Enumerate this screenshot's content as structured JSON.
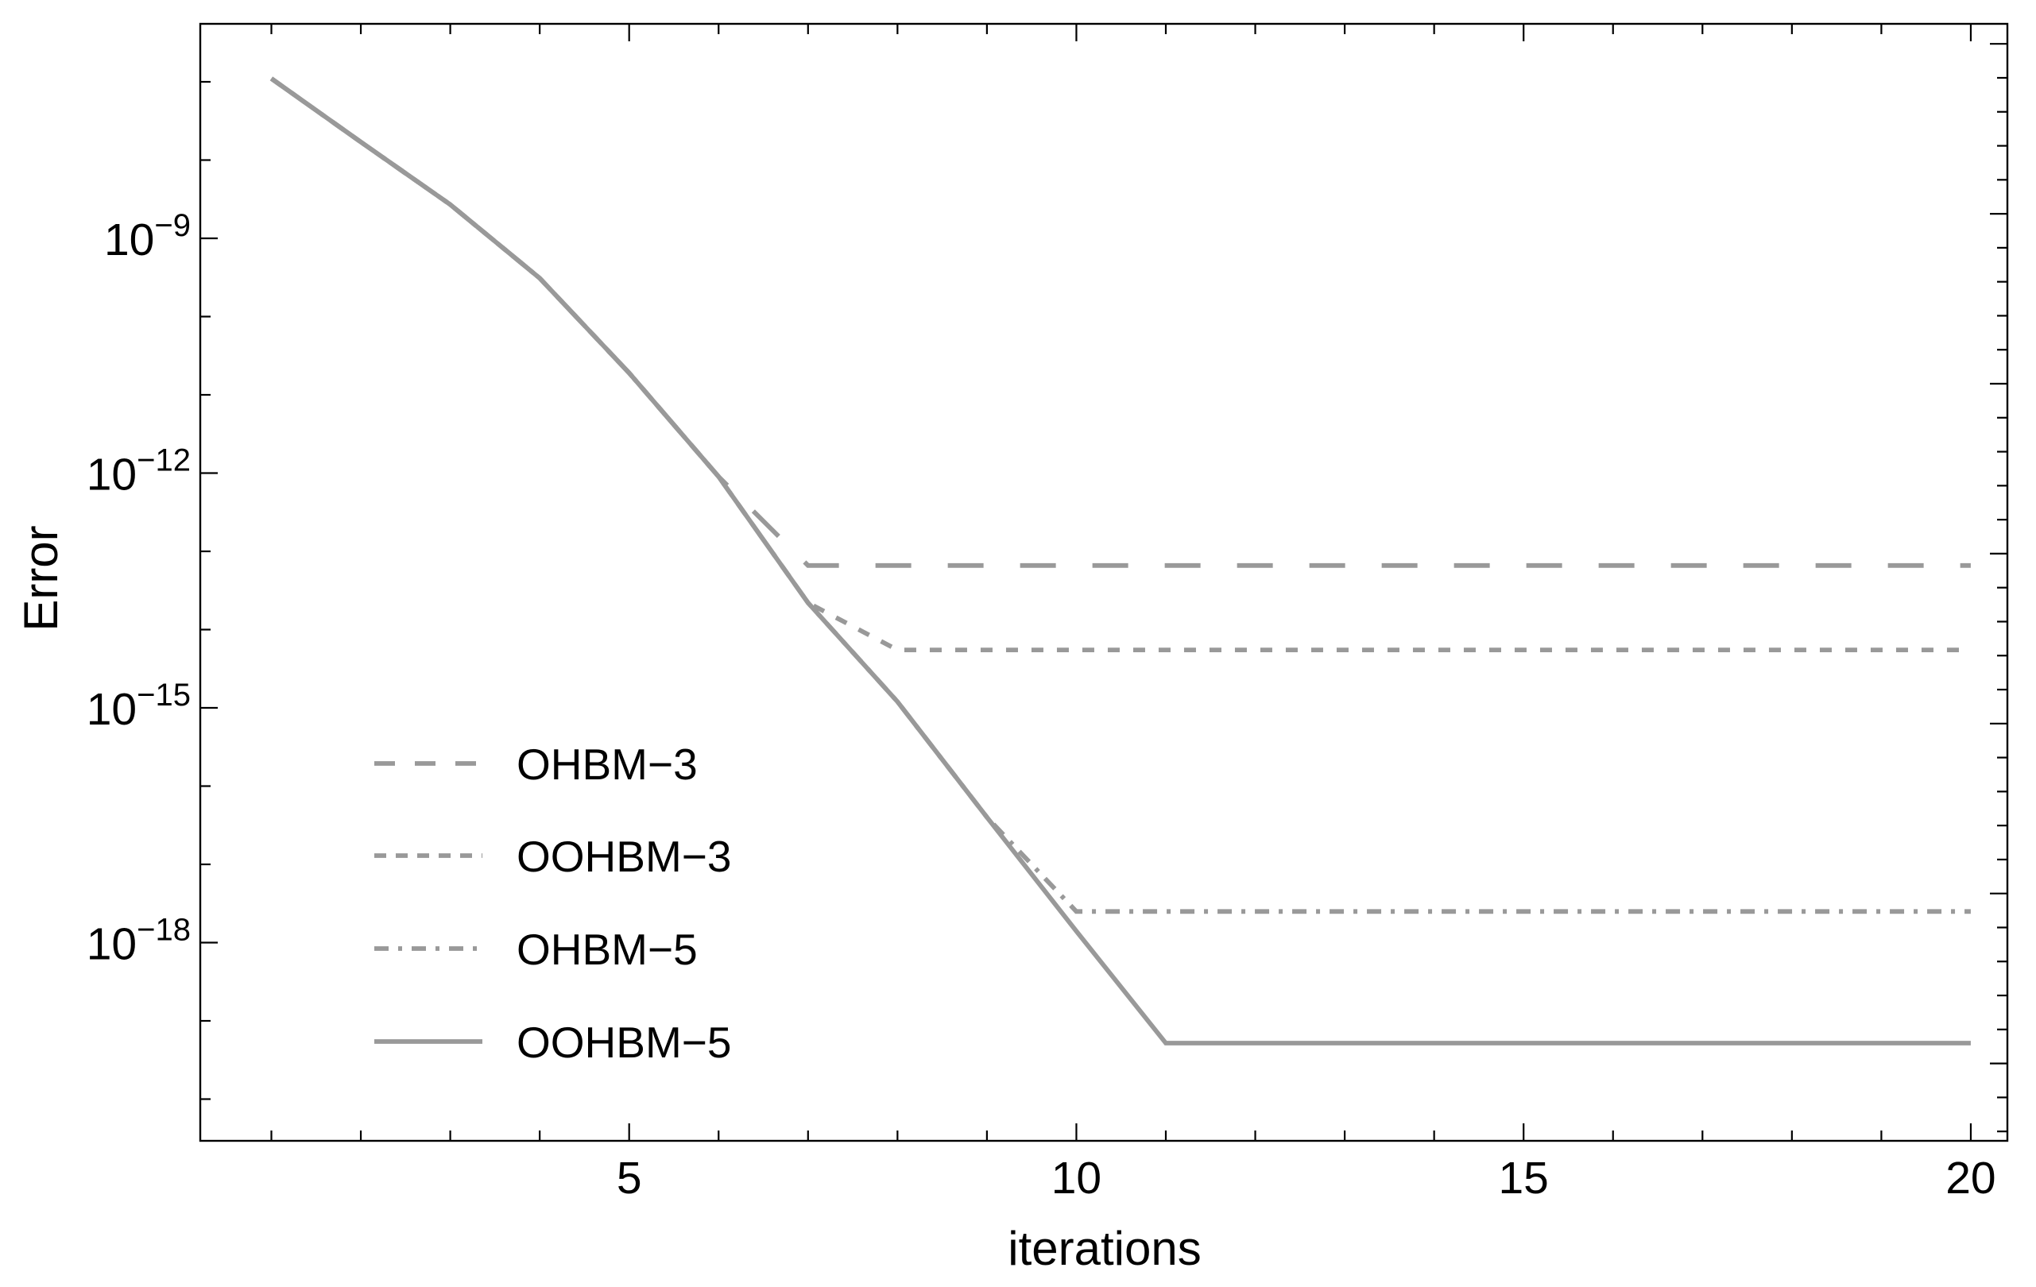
{
  "chart_data": {
    "type": "line",
    "title": "",
    "xlabel": "iterations",
    "ylabel": "Error",
    "x_ticks": [
      5,
      10,
      15,
      20
    ],
    "y_tick_labels": [
      "10^-9",
      "10^-12",
      "10^-15",
      "10^-18"
    ],
    "y_tick_exponents": [
      -9,
      -12,
      -15,
      -18
    ],
    "y_minor_decades": [
      -7,
      -8,
      -9,
      -10,
      -11,
      -12,
      -13,
      -14,
      -15,
      -16,
      -17,
      -18,
      -19,
      -20
    ],
    "xlim": [
      0.2,
      20.4
    ],
    "ylim_exponents": [
      -20.5,
      -6.3
    ],
    "log_y": true,
    "grid": false,
    "legend_position": "inside-left-lower",
    "line_color": "#999999",
    "axis_color": "#000000",
    "x": [
      1,
      2,
      3,
      4,
      5,
      6,
      7,
      8,
      9,
      10,
      11,
      12,
      13,
      14,
      15,
      16,
      17,
      18,
      19,
      20
    ],
    "series": [
      {
        "name": "OHBM−3",
        "style": "long-dash",
        "values": [
          1.1e-07,
          1.7e-08,
          2.7e-09,
          3.1e-10,
          1.9e-11,
          9e-13,
          6.6e-14,
          6.6e-14,
          6.6e-14,
          6.6e-14,
          6.6e-14,
          6.6e-14,
          6.6e-14,
          6.6e-14,
          6.6e-14,
          6.6e-14,
          6.6e-14,
          6.6e-14,
          6.6e-14,
          6.6e-14
        ]
      },
      {
        "name": "OOHBM−3",
        "style": "short-dash",
        "values": [
          1.1e-07,
          1.7e-08,
          2.7e-09,
          3.1e-10,
          1.9e-11,
          9e-13,
          2.2e-14,
          5.5e-15,
          5.5e-15,
          5.5e-15,
          5.5e-15,
          5.5e-15,
          5.5e-15,
          5.5e-15,
          5.5e-15,
          5.5e-15,
          5.5e-15,
          5.5e-15,
          5.5e-15,
          5.5e-15
        ]
      },
      {
        "name": "OHBM−5",
        "style": "dash-dot",
        "values": [
          1.1e-07,
          1.7e-08,
          2.7e-09,
          3.1e-10,
          1.9e-11,
          9e-13,
          2.2e-14,
          1.2e-15,
          4e-17,
          2.5e-18,
          2.5e-18,
          2.5e-18,
          2.5e-18,
          2.5e-18,
          2.5e-18,
          2.5e-18,
          2.5e-18,
          2.5e-18,
          2.5e-18,
          2.5e-18
        ]
      },
      {
        "name": "OOHBM−5",
        "style": "solid",
        "values": [
          1.1e-07,
          1.7e-08,
          2.7e-09,
          3.1e-10,
          1.9e-11,
          9e-13,
          2.2e-14,
          1.2e-15,
          4e-17,
          1.4e-18,
          5.2e-20,
          5.2e-20,
          5.2e-20,
          5.2e-20,
          5.2e-20,
          5.2e-20,
          5.2e-20,
          5.2e-20,
          5.2e-20,
          5.2e-20
        ]
      }
    ]
  }
}
